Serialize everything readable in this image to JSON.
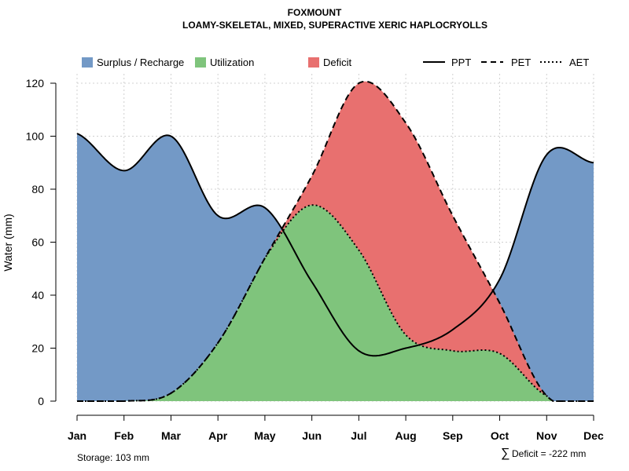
{
  "chart_data": {
    "type": "area",
    "title": "FOXMOUNT",
    "subtitle": "LOAMY-SKELETAL, MIXED, SUPERACTIVE XERIC HAPLOCRYOLLS",
    "xlabel": "",
    "ylabel": "Water (mm)",
    "ylim": [
      0,
      120
    ],
    "yticks": [
      0,
      20,
      40,
      60,
      80,
      100,
      120
    ],
    "grid": true,
    "legend_position": "top",
    "categories": [
      "Jan",
      "Feb",
      "Mar",
      "Apr",
      "May",
      "Jun",
      "Jul",
      "Aug",
      "Sep",
      "Oct",
      "Nov",
      "Dec"
    ],
    "series": [
      {
        "name": "PPT",
        "style": "solid",
        "values": [
          101,
          87,
          100,
          70,
          73,
          45,
          19,
          20,
          27,
          46,
          93,
          90
        ]
      },
      {
        "name": "PET",
        "style": "dashed",
        "values": [
          0,
          0,
          3,
          22,
          54,
          85,
          120,
          105,
          70,
          37,
          2,
          0
        ]
      },
      {
        "name": "AET",
        "style": "dotted",
        "values": [
          0,
          0,
          3,
          22,
          54,
          74,
          57,
          25,
          19,
          18,
          2,
          0
        ]
      }
    ],
    "areas": [
      {
        "name": "Surplus / Recharge",
        "color": "#7399C6"
      },
      {
        "name": "Utilization",
        "color": "#7FC47C"
      },
      {
        "name": "Deficit",
        "color": "#E8706F"
      }
    ],
    "legend_lines": [
      {
        "name": "PPT",
        "style": "solid"
      },
      {
        "name": "PET",
        "style": "dashed"
      },
      {
        "name": "AET",
        "style": "dotted"
      }
    ],
    "annotations": {
      "storage": "Storage: 103 mm",
      "deficit_symbol": "∑",
      "deficit": "Deficit = -222 mm"
    }
  }
}
